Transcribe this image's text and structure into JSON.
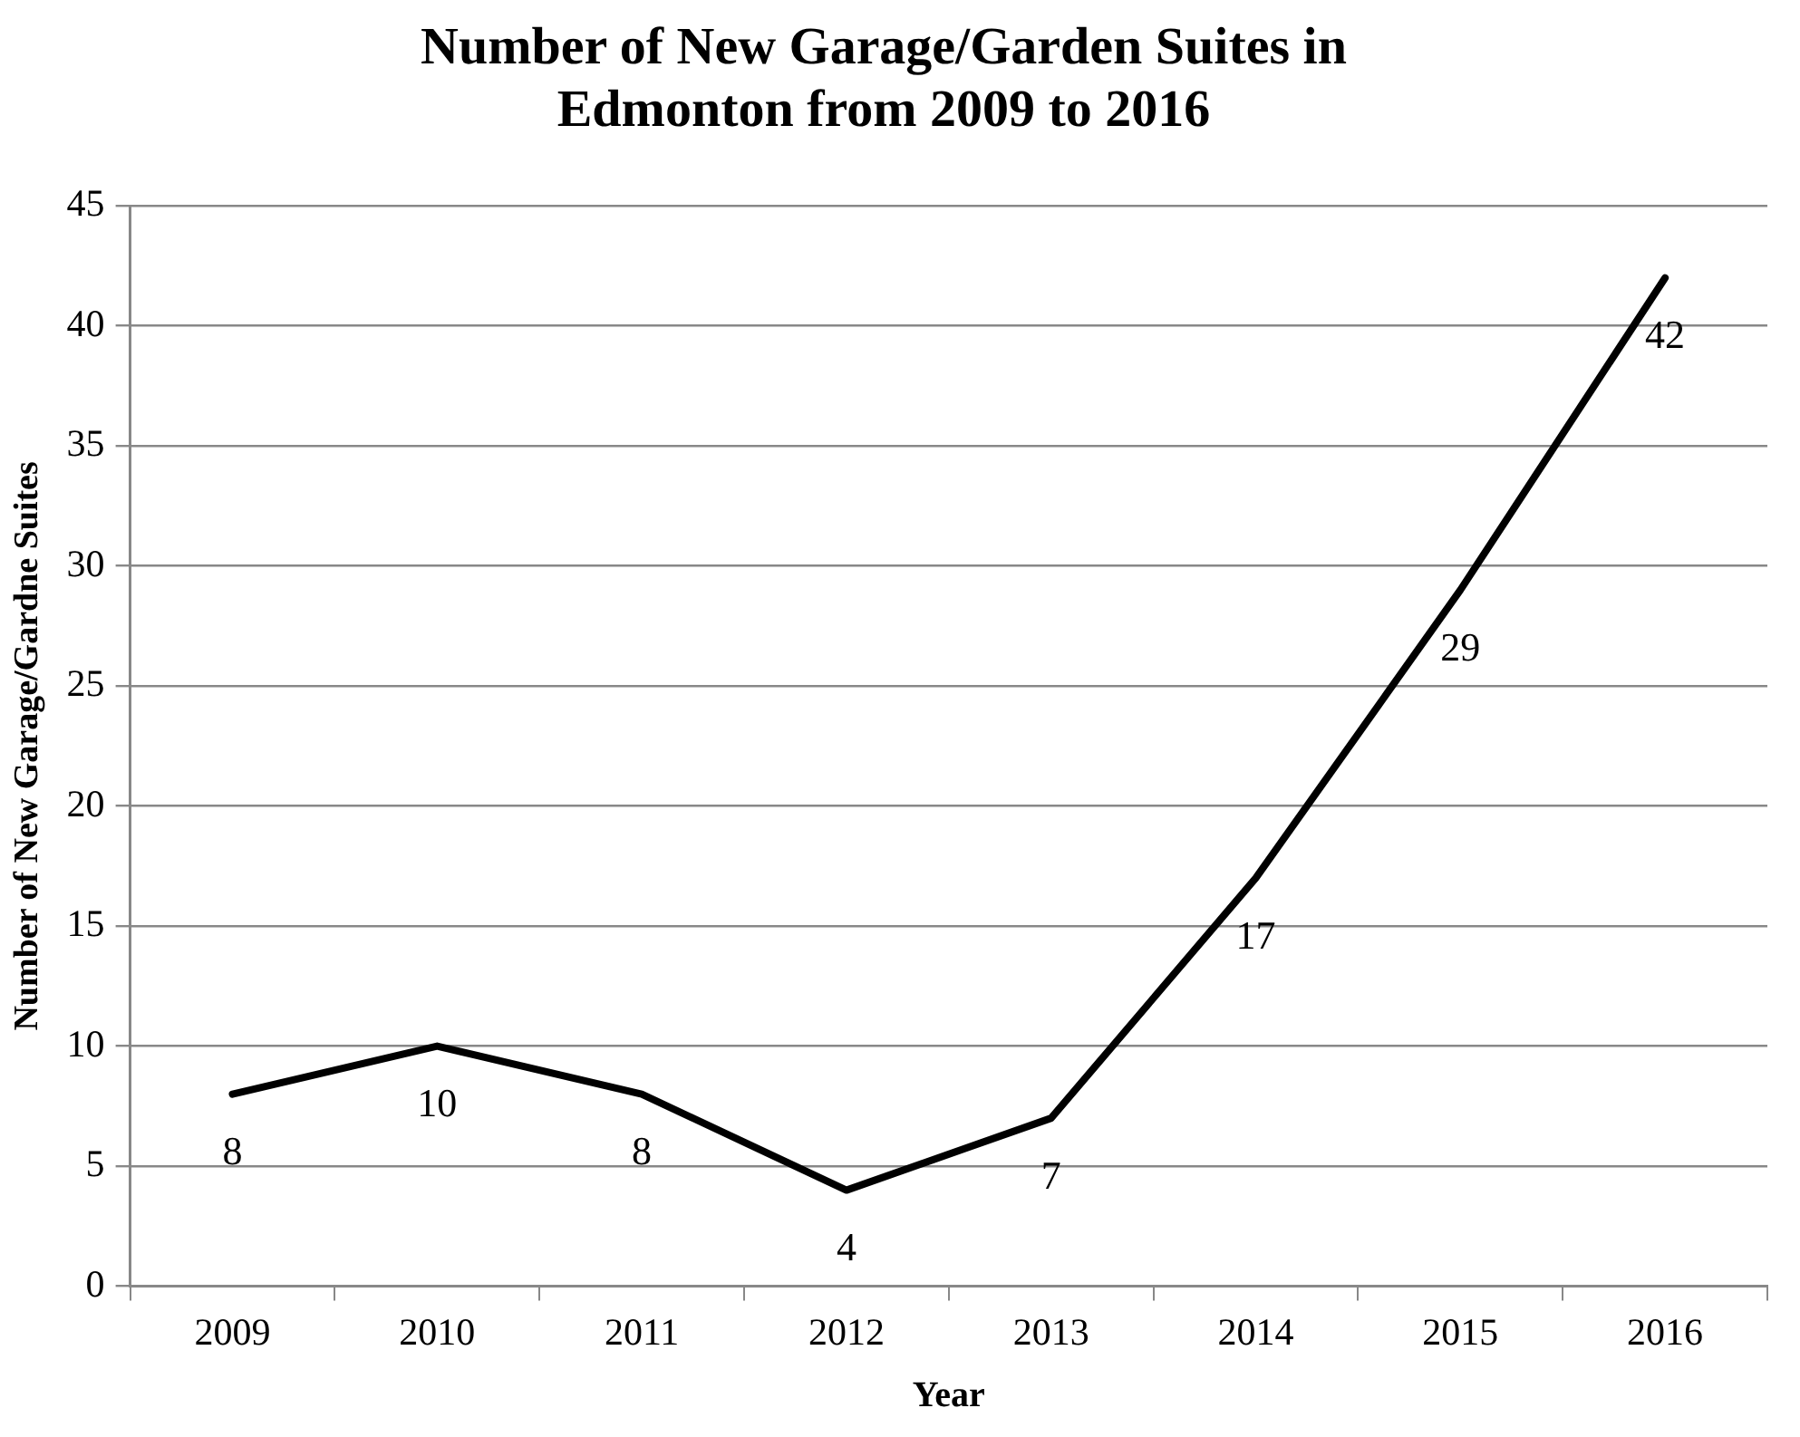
{
  "chart_data": {
    "type": "line",
    "title": [
      "Number of New Garage/Garden Suites in",
      "Edmonton from 2009 to 2016"
    ],
    "xlabel": "Year",
    "ylabel": "Number of New Garage/Gardne Suites",
    "categories": [
      "2009",
      "2010",
      "2011",
      "2012",
      "2013",
      "2014",
      "2015",
      "2016"
    ],
    "series": [
      {
        "color": "#000000",
        "values": [
          8,
          10,
          8,
          4,
          7,
          17,
          29,
          42
        ]
      }
    ],
    "ylim": [
      0,
      45
    ],
    "yticks": [
      0,
      5,
      10,
      15,
      20,
      25,
      30,
      35,
      40,
      45
    ],
    "grid": "y",
    "legend": false,
    "marker": "none",
    "data_labels": true
  }
}
